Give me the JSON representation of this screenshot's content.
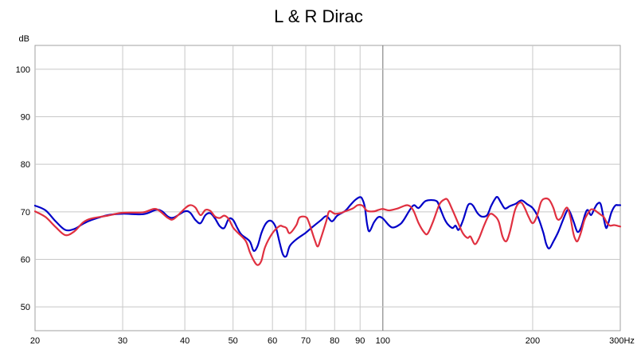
{
  "chart_data": {
    "type": "line",
    "title": "L & R Dirac",
    "ylabel": "dB",
    "xlabel": "",
    "x_unit": "Hz",
    "x_scale": "log",
    "xlim": [
      20,
      300
    ],
    "ylim": [
      45,
      105
    ],
    "grid": true,
    "legend": "none",
    "x_ticks": [
      20,
      30,
      40,
      50,
      60,
      70,
      80,
      90,
      100,
      200,
      300
    ],
    "x_tick_labels": [
      "20",
      "30",
      "40",
      "50",
      "60",
      "70",
      "80",
      "90",
      "100",
      "200",
      "300Hz"
    ],
    "y_ticks": [
      50,
      60,
      70,
      80,
      90,
      100
    ],
    "y_tick_labels": [
      "50",
      "60",
      "70",
      "80",
      "90",
      "100"
    ],
    "series": [
      {
        "color": "#0000c8",
        "points": [
          [
            20,
            71.3
          ],
          [
            21,
            70.3
          ],
          [
            22,
            68.0
          ],
          [
            23,
            66.2
          ],
          [
            24,
            66.4
          ],
          [
            25,
            67.5
          ],
          [
            26,
            68.3
          ],
          [
            28,
            69.3
          ],
          [
            30,
            69.6
          ],
          [
            33,
            69.5
          ],
          [
            35,
            70.4
          ],
          [
            36,
            70.1
          ],
          [
            37,
            69.0
          ],
          [
            38,
            68.8
          ],
          [
            40,
            70.1
          ],
          [
            41,
            69.8
          ],
          [
            42,
            68.3
          ],
          [
            43,
            67.6
          ],
          [
            44,
            69.3
          ],
          [
            45,
            69.7
          ],
          [
            46,
            68.6
          ],
          [
            47,
            67.0
          ],
          [
            48,
            66.6
          ],
          [
            49,
            68.5
          ],
          [
            50,
            68.3
          ],
          [
            51,
            66.6
          ],
          [
            52,
            65.2
          ],
          [
            54,
            63.8
          ],
          [
            55,
            61.8
          ],
          [
            56,
            62.8
          ],
          [
            57,
            65.5
          ],
          [
            58,
            67.3
          ],
          [
            59,
            68.1
          ],
          [
            60,
            67.9
          ],
          [
            61,
            66.6
          ],
          [
            62,
            63.6
          ],
          [
            63,
            61.0
          ],
          [
            64,
            60.7
          ],
          [
            65,
            62.8
          ],
          [
            67,
            64.2
          ],
          [
            70,
            65.6
          ],
          [
            72,
            66.7
          ],
          [
            75,
            68.2
          ],
          [
            77,
            69.1
          ],
          [
            79,
            68.0
          ],
          [
            81,
            69.2
          ],
          [
            84,
            70.2
          ],
          [
            86,
            71.4
          ],
          [
            88,
            72.5
          ],
          [
            90,
            73.1
          ],
          [
            91,
            72.6
          ],
          [
            92,
            71.0
          ],
          [
            93,
            67.3
          ],
          [
            94,
            65.9
          ],
          [
            96,
            67.8
          ],
          [
            98,
            68.9
          ],
          [
            100,
            68.6
          ],
          [
            103,
            67.1
          ],
          [
            105,
            66.7
          ],
          [
            108,
            67.3
          ],
          [
            110,
            68.2
          ],
          [
            115,
            71.3
          ],
          [
            118,
            70.8
          ],
          [
            122,
            72.3
          ],
          [
            128,
            72.3
          ],
          [
            130,
            71.0
          ],
          [
            133,
            68.5
          ],
          [
            135,
            67.4
          ],
          [
            138,
            66.6
          ],
          [
            140,
            67.1
          ],
          [
            142,
            66.2
          ],
          [
            145,
            68.3
          ],
          [
            148,
            71.2
          ],
          [
            150,
            71.7
          ],
          [
            152,
            71.2
          ],
          [
            155,
            69.7
          ],
          [
            158,
            69.0
          ],
          [
            162,
            69.3
          ],
          [
            165,
            71.2
          ],
          [
            168,
            72.7
          ],
          [
            170,
            73.1
          ],
          [
            173,
            71.8
          ],
          [
            176,
            70.7
          ],
          [
            180,
            71.2
          ],
          [
            185,
            71.7
          ],
          [
            190,
            72.4
          ],
          [
            195,
            71.6
          ],
          [
            200,
            70.8
          ],
          [
            205,
            68.9
          ],
          [
            210,
            65.7
          ],
          [
            213,
            63.2
          ],
          [
            216,
            62.3
          ],
          [
            220,
            63.7
          ],
          [
            225,
            65.7
          ],
          [
            230,
            68.2
          ],
          [
            235,
            70.4
          ],
          [
            238,
            69.8
          ],
          [
            242,
            67.8
          ],
          [
            246,
            65.8
          ],
          [
            250,
            66.6
          ],
          [
            255,
            69.5
          ],
          [
            258,
            70.4
          ],
          [
            262,
            69.3
          ],
          [
            266,
            70.6
          ],
          [
            270,
            71.7
          ],
          [
            274,
            71.6
          ],
          [
            278,
            68.5
          ],
          [
            281,
            66.6
          ],
          [
            284,
            67.7
          ],
          [
            288,
            69.9
          ],
          [
            293,
            71.3
          ],
          [
            297,
            71.4
          ],
          [
            300,
            71.4
          ]
        ]
      },
      {
        "color": "#e03040",
        "points": [
          [
            20,
            70.1
          ],
          [
            21,
            68.9
          ],
          [
            22,
            66.8
          ],
          [
            23,
            65.1
          ],
          [
            24,
            65.9
          ],
          [
            25,
            67.8
          ],
          [
            26,
            68.6
          ],
          [
            28,
            69.2
          ],
          [
            30,
            69.8
          ],
          [
            33,
            69.9
          ],
          [
            35,
            70.6
          ],
          [
            37,
            68.7
          ],
          [
            38,
            68.5
          ],
          [
            40,
            70.7
          ],
          [
            41,
            71.4
          ],
          [
            42,
            70.9
          ],
          [
            43,
            69.3
          ],
          [
            44,
            70.4
          ],
          [
            45,
            70.2
          ],
          [
            46,
            69.0
          ],
          [
            47,
            68.7
          ],
          [
            48,
            69.2
          ],
          [
            49,
            68.5
          ],
          [
            50,
            66.7
          ],
          [
            51,
            65.7
          ],
          [
            53,
            63.9
          ],
          [
            54,
            61.6
          ],
          [
            55,
            59.8
          ],
          [
            56,
            58.8
          ],
          [
            57,
            59.7
          ],
          [
            58,
            62.6
          ],
          [
            60,
            65.5
          ],
          [
            62,
            67.0
          ],
          [
            63,
            66.9
          ],
          [
            64,
            66.6
          ],
          [
            65,
            65.5
          ],
          [
            67,
            67.2
          ],
          [
            68,
            68.8
          ],
          [
            70,
            68.9
          ],
          [
            71,
            67.8
          ],
          [
            73,
            64.0
          ],
          [
            74,
            62.7
          ],
          [
            75,
            64.3
          ],
          [
            77,
            68.1
          ],
          [
            78,
            70.1
          ],
          [
            80,
            69.6
          ],
          [
            82,
            69.7
          ],
          [
            84,
            70.1
          ],
          [
            87,
            70.7
          ],
          [
            89,
            71.4
          ],
          [
            91,
            71.3
          ],
          [
            93,
            70.2
          ],
          [
            96,
            70.1
          ],
          [
            98,
            70.4
          ],
          [
            100,
            70.6
          ],
          [
            103,
            70.3
          ],
          [
            107,
            70.7
          ],
          [
            112,
            71.4
          ],
          [
            115,
            70.4
          ],
          [
            118,
            67.6
          ],
          [
            121,
            65.7
          ],
          [
            123,
            65.4
          ],
          [
            126,
            67.8
          ],
          [
            130,
            71.6
          ],
          [
            133,
            72.6
          ],
          [
            135,
            72.5
          ],
          [
            138,
            70.4
          ],
          [
            142,
            67.4
          ],
          [
            145,
            65.4
          ],
          [
            148,
            64.5
          ],
          [
            150,
            64.8
          ],
          [
            153,
            63.2
          ],
          [
            156,
            64.4
          ],
          [
            160,
            67.3
          ],
          [
            164,
            69.5
          ],
          [
            168,
            69.1
          ],
          [
            171,
            67.9
          ],
          [
            174,
            64.8
          ],
          [
            177,
            63.8
          ],
          [
            180,
            65.8
          ],
          [
            184,
            70.1
          ],
          [
            187,
            71.7
          ],
          [
            190,
            71.9
          ],
          [
            193,
            70.7
          ],
          [
            196,
            69.1
          ],
          [
            200,
            67.6
          ],
          [
            204,
            69.1
          ],
          [
            208,
            72.1
          ],
          [
            212,
            72.8
          ],
          [
            216,
            72.5
          ],
          [
            220,
            70.9
          ],
          [
            224,
            68.5
          ],
          [
            228,
            68.7
          ],
          [
            232,
            70.4
          ],
          [
            235,
            70.8
          ],
          [
            238,
            69.0
          ],
          [
            241,
            65.9
          ],
          [
            243,
            64.5
          ],
          [
            246,
            63.8
          ],
          [
            250,
            65.6
          ],
          [
            254,
            68.2
          ],
          [
            258,
            69.6
          ],
          [
            262,
            70.5
          ],
          [
            266,
            70.4
          ],
          [
            270,
            69.9
          ],
          [
            274,
            69.4
          ],
          [
            278,
            68.9
          ],
          [
            282,
            67.7
          ],
          [
            286,
            67.1
          ],
          [
            292,
            67.2
          ],
          [
            300,
            66.9
          ]
        ]
      }
    ]
  }
}
